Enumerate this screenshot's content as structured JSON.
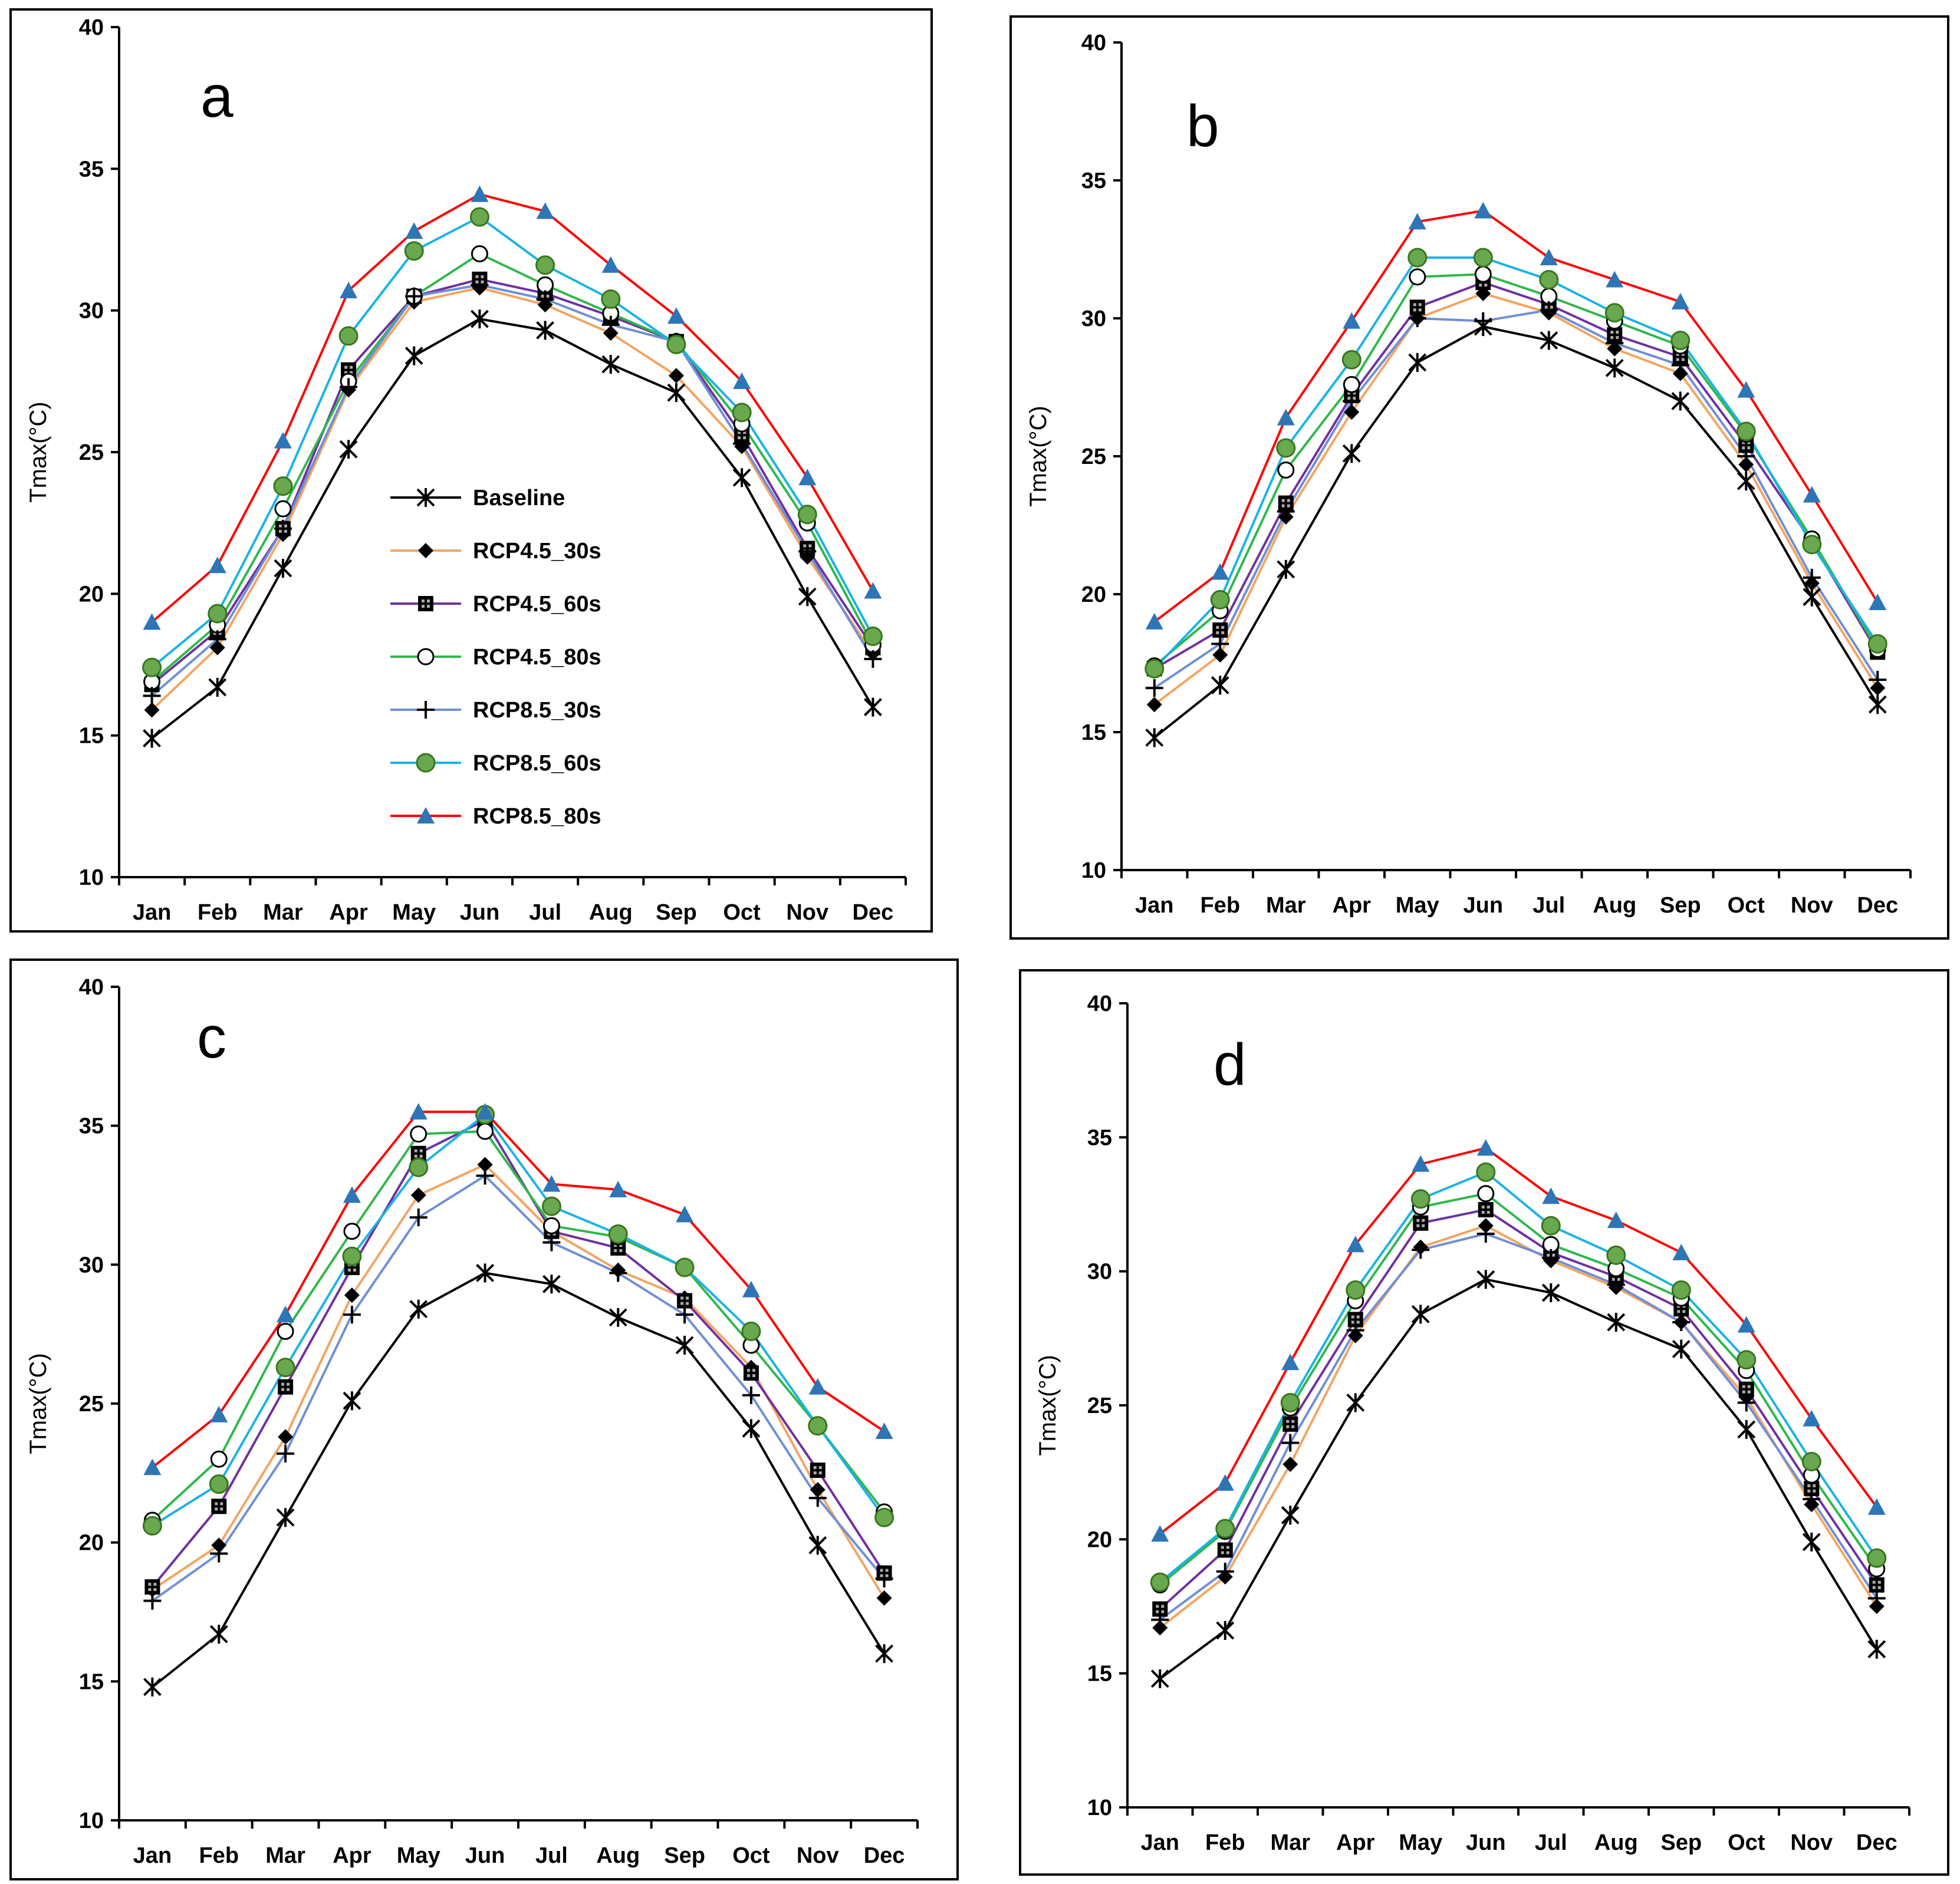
{
  "chart_data": [
    {
      "type": "line",
      "title": "a",
      "xlabel": "",
      "ylabel": "Tmax(°C)",
      "ylim": [
        10,
        40
      ],
      "yticks": [
        10,
        15,
        20,
        25,
        30,
        35,
        40
      ],
      "categories": [
        "Jan",
        "Feb",
        "Mar",
        "Apr",
        "May",
        "Jun",
        "Jul",
        "Aug",
        "Sep",
        "Oct",
        "Nov",
        "Dec"
      ],
      "legend": "center",
      "series": [
        {
          "name": "Baseline",
          "color": "#000000",
          "marker": "asterisk",
          "values": [
            14.9,
            16.7,
            20.9,
            25.1,
            28.4,
            29.7,
            29.3,
            28.1,
            27.1,
            24.1,
            19.9,
            16.0
          ]
        },
        {
          "name": "RCP4.5_30s",
          "color": "#F4A460",
          "marker": "diamond-black",
          "values": [
            15.9,
            18.1,
            22.1,
            27.2,
            30.3,
            30.8,
            30.2,
            29.2,
            27.7,
            25.2,
            21.3,
            17.9
          ]
        },
        {
          "name": "RCP4.5_60s",
          "color": "#7030A0",
          "marker": "square-patterned",
          "values": [
            16.8,
            18.7,
            22.3,
            27.9,
            30.5,
            31.1,
            30.6,
            29.8,
            28.9,
            25.6,
            21.6,
            18.1
          ]
        },
        {
          "name": "RCP4.5_80s",
          "color": "#2EB84B",
          "marker": "circle-open",
          "values": [
            16.9,
            18.9,
            23.0,
            27.5,
            30.5,
            32.0,
            30.9,
            29.9,
            28.9,
            26.0,
            22.5,
            18.2
          ]
        },
        {
          "name": "RCP8.5_30s",
          "color": "#6F8FD6",
          "marker": "plus",
          "values": [
            16.4,
            18.4,
            22.3,
            27.3,
            30.5,
            30.9,
            30.4,
            29.5,
            28.9,
            25.3,
            21.5,
            17.7
          ]
        },
        {
          "name": "RCP8.5_60s",
          "color": "#1AB3E6",
          "marker": "circle-green",
          "values": [
            17.4,
            19.3,
            23.8,
            29.1,
            32.1,
            33.3,
            31.6,
            30.4,
            28.8,
            26.4,
            22.8,
            18.5
          ]
        },
        {
          "name": "RCP8.5_80s",
          "color": "#FF0000",
          "marker": "triangle-blue",
          "values": [
            19.0,
            21.0,
            25.4,
            30.7,
            32.8,
            34.1,
            33.5,
            31.6,
            29.8,
            27.5,
            24.1,
            20.1
          ]
        }
      ]
    },
    {
      "type": "line",
      "title": "b",
      "xlabel": "",
      "ylabel": "Tmax(°C)",
      "ylim": [
        10,
        40
      ],
      "yticks": [
        10,
        15,
        20,
        25,
        30,
        35,
        40
      ],
      "categories": [
        "Jan",
        "Feb",
        "Mar",
        "Apr",
        "May",
        "Jun",
        "Jul",
        "Aug",
        "Sep",
        "Oct",
        "Nov",
        "Dec"
      ],
      "series": [
        {
          "name": "Baseline",
          "color": "#000000",
          "marker": "asterisk",
          "values": [
            14.8,
            16.7,
            20.9,
            25.1,
            28.4,
            29.7,
            29.2,
            28.2,
            27.0,
            24.1,
            19.9,
            16.0
          ]
        },
        {
          "name": "RCP4.5_30s",
          "color": "#F4A460",
          "marker": "diamond-black",
          "values": [
            16.0,
            17.8,
            22.8,
            26.6,
            30.0,
            30.9,
            30.2,
            28.9,
            28.0,
            24.7,
            20.4,
            16.6
          ]
        },
        {
          "name": "RCP4.5_60s",
          "color": "#7030A0",
          "marker": "square-patterned",
          "values": [
            17.3,
            18.7,
            23.3,
            27.2,
            30.4,
            31.3,
            30.5,
            29.4,
            28.6,
            25.4,
            21.9,
            17.9
          ]
        },
        {
          "name": "RCP4.5_80s",
          "color": "#2EB84B",
          "marker": "circle-open",
          "values": [
            17.4,
            19.4,
            24.5,
            27.6,
            31.5,
            31.6,
            30.8,
            29.9,
            29.0,
            25.8,
            22.0,
            18.0
          ]
        },
        {
          "name": "RCP8.5_30s",
          "color": "#6F8FD6",
          "marker": "plus",
          "values": [
            16.6,
            18.2,
            23.0,
            27.0,
            30.0,
            29.9,
            30.3,
            29.1,
            28.3,
            25.0,
            20.6,
            16.9
          ]
        },
        {
          "name": "RCP8.5_60s",
          "color": "#1AB3E6",
          "marker": "circle-green",
          "values": [
            17.3,
            19.8,
            25.3,
            28.5,
            32.2,
            32.2,
            31.4,
            30.2,
            29.2,
            25.9,
            21.8,
            18.2
          ]
        },
        {
          "name": "RCP8.5_80s",
          "color": "#FF0000",
          "marker": "triangle-blue",
          "values": [
            19.0,
            20.8,
            26.4,
            29.9,
            33.5,
            33.9,
            32.2,
            31.4,
            30.6,
            27.4,
            23.6,
            19.7
          ]
        }
      ]
    },
    {
      "type": "line",
      "title": "c",
      "xlabel": "",
      "ylabel": "Tmax(°C)",
      "ylim": [
        10,
        40
      ],
      "yticks": [
        10,
        15,
        20,
        25,
        30,
        35,
        40
      ],
      "categories": [
        "Jan",
        "Feb",
        "Mar",
        "Apr",
        "May",
        "Jun",
        "Jul",
        "Aug",
        "Sep",
        "Oct",
        "Nov",
        "Dec"
      ],
      "series": [
        {
          "name": "Baseline",
          "color": "#000000",
          "marker": "asterisk",
          "values": [
            14.8,
            16.7,
            20.9,
            25.1,
            28.4,
            29.7,
            29.3,
            28.1,
            27.1,
            24.1,
            19.9,
            16.0
          ]
        },
        {
          "name": "RCP4.5_30s",
          "color": "#F4A460",
          "marker": "diamond-black",
          "values": [
            18.3,
            19.9,
            23.8,
            28.9,
            32.5,
            33.6,
            31.2,
            29.8,
            28.8,
            26.3,
            21.9,
            18.0
          ]
        },
        {
          "name": "RCP4.5_60s",
          "color": "#7030A0",
          "marker": "square-patterned",
          "values": [
            18.4,
            21.3,
            25.6,
            29.9,
            34.0,
            35.2,
            31.2,
            30.6,
            28.7,
            26.1,
            22.6,
            18.9
          ]
        },
        {
          "name": "RCP4.5_80s",
          "color": "#2EB84B",
          "marker": "circle-open",
          "values": [
            20.8,
            23.0,
            27.6,
            31.2,
            34.7,
            34.8,
            31.4,
            31.0,
            29.9,
            27.1,
            24.2,
            21.1
          ]
        },
        {
          "name": "RCP8.5_30s",
          "color": "#6F8FD6",
          "marker": "plus",
          "values": [
            17.9,
            19.6,
            23.2,
            28.2,
            31.7,
            33.2,
            30.8,
            29.7,
            28.2,
            25.3,
            21.6,
            18.7
          ]
        },
        {
          "name": "RCP8.5_60s",
          "color": "#1AB3E6",
          "marker": "circle-green",
          "values": [
            20.6,
            22.1,
            26.3,
            30.3,
            33.5,
            35.4,
            32.1,
            31.1,
            29.9,
            27.6,
            24.2,
            20.9
          ]
        },
        {
          "name": "RCP8.5_80s",
          "color": "#FF0000",
          "marker": "triangle-blue",
          "values": [
            22.7,
            24.6,
            28.2,
            32.5,
            35.5,
            35.5,
            32.9,
            32.7,
            31.8,
            29.1,
            25.6,
            24.0
          ]
        }
      ]
    },
    {
      "type": "line",
      "title": "d",
      "xlabel": "",
      "ylabel": "Tmax(°C)",
      "ylim": [
        10,
        40
      ],
      "yticks": [
        10,
        15,
        20,
        25,
        30,
        35,
        40
      ],
      "categories": [
        "Jan",
        "Feb",
        "Mar",
        "Apr",
        "May",
        "Jun",
        "Jul",
        "Aug",
        "Sep",
        "Oct",
        "Nov",
        "Dec"
      ],
      "series": [
        {
          "name": "Baseline",
          "color": "#000000",
          "marker": "asterisk",
          "values": [
            14.8,
            16.6,
            20.9,
            25.1,
            28.4,
            29.7,
            29.2,
            28.1,
            27.1,
            24.1,
            19.9,
            15.9
          ]
        },
        {
          "name": "RCP4.5_30s",
          "color": "#F4A460",
          "marker": "diamond-black",
          "values": [
            16.7,
            18.6,
            22.8,
            27.6,
            30.9,
            31.7,
            30.4,
            29.4,
            28.1,
            25.3,
            21.3,
            17.5
          ]
        },
        {
          "name": "RCP4.5_60s",
          "color": "#7030A0",
          "marker": "square-patterned",
          "values": [
            17.4,
            19.6,
            24.3,
            28.2,
            31.8,
            32.3,
            30.7,
            29.8,
            28.6,
            25.6,
            21.9,
            18.3
          ]
        },
        {
          "name": "RCP4.5_80s",
          "color": "#2EB84B",
          "marker": "circle-open",
          "values": [
            18.3,
            20.3,
            24.9,
            28.9,
            32.4,
            32.9,
            31.0,
            30.1,
            29.0,
            26.3,
            22.4,
            18.9
          ]
        },
        {
          "name": "RCP8.5_30s",
          "color": "#6F8FD6",
          "marker": "plus",
          "values": [
            17.0,
            18.8,
            23.6,
            27.8,
            30.8,
            31.4,
            30.5,
            29.5,
            28.1,
            25.1,
            21.5,
            17.8
          ]
        },
        {
          "name": "RCP8.5_60s",
          "color": "#1AB3E6",
          "marker": "circle-green",
          "values": [
            18.4,
            20.4,
            25.1,
            29.3,
            32.7,
            33.7,
            31.7,
            30.6,
            29.3,
            26.7,
            22.9,
            19.3
          ]
        },
        {
          "name": "RCP8.5_80s",
          "color": "#FF0000",
          "marker": "triangle-blue",
          "values": [
            20.2,
            22.1,
            26.6,
            31.0,
            34.0,
            34.6,
            32.8,
            31.9,
            30.7,
            28.0,
            24.5,
            21.2
          ]
        }
      ]
    }
  ]
}
